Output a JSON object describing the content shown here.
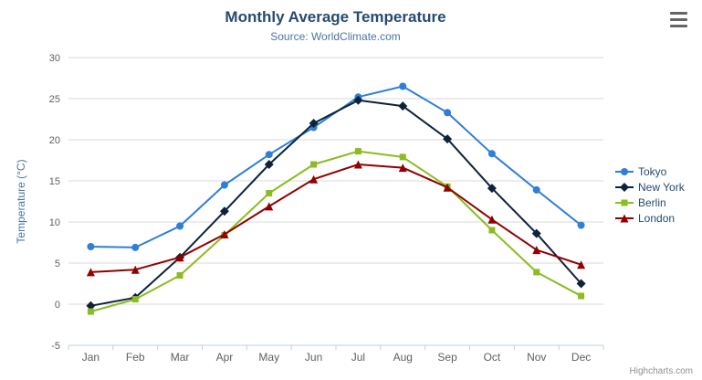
{
  "header": {
    "title": "Monthly Average Temperature",
    "subtitle": "Source: WorldClimate.com"
  },
  "toolbar": {
    "context_menu_icon": "hamburger-menu-icon"
  },
  "credits": {
    "label": "Highcharts.com"
  },
  "chart_data": {
    "type": "line",
    "title": "Monthly Average Temperature",
    "subtitle": "Source: WorldClimate.com",
    "categories": [
      "Jan",
      "Feb",
      "Mar",
      "Apr",
      "May",
      "Jun",
      "Jul",
      "Aug",
      "Sep",
      "Oct",
      "Nov",
      "Dec"
    ],
    "series": [
      {
        "name": "Tokyo",
        "color": "#2f7ed8",
        "marker": "circle",
        "values": [
          7.0,
          6.9,
          9.5,
          14.5,
          18.2,
          21.5,
          25.2,
          26.5,
          23.3,
          18.3,
          13.9,
          9.6
        ]
      },
      {
        "name": "New York",
        "color": "#0d233a",
        "marker": "diamond",
        "values": [
          -0.2,
          0.8,
          5.7,
          11.3,
          17.0,
          22.0,
          24.8,
          24.1,
          20.1,
          14.1,
          8.6,
          2.5
        ]
      },
      {
        "name": "Berlin",
        "color": "#8bbc21",
        "marker": "square",
        "values": [
          -0.9,
          0.6,
          3.5,
          8.4,
          13.5,
          17.0,
          18.6,
          17.9,
          14.3,
          9.0,
          3.9,
          1.0
        ]
      },
      {
        "name": "London",
        "color": "#910000",
        "marker": "triangle",
        "values": [
          3.9,
          4.2,
          5.7,
          8.5,
          11.9,
          15.2,
          17.0,
          16.6,
          14.2,
          10.3,
          6.6,
          4.8
        ]
      }
    ],
    "xlabel": "",
    "ylabel": "Temperature (°C)",
    "ylim": [
      -5,
      30
    ],
    "ytick_interval": 5,
    "yticks": [
      -5,
      0,
      5,
      10,
      15,
      20,
      25,
      30
    ],
    "grid": true,
    "legend_position": "right",
    "colors": {
      "title_text": "#274b6d",
      "subtitle_text": "#4d759e",
      "axis_label_text": "#606060",
      "gridline": "#d8d8d8",
      "axis_line": "#c0d0e0"
    }
  }
}
